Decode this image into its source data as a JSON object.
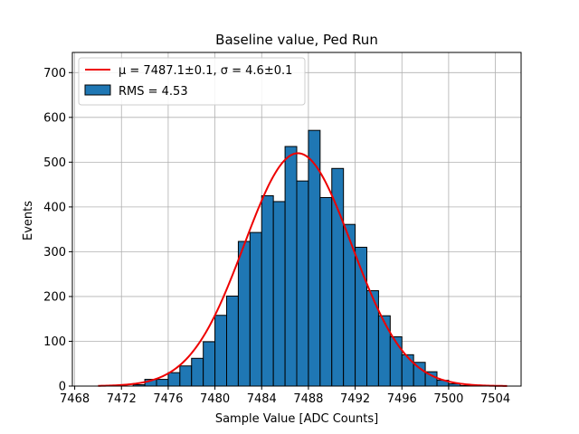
{
  "chart_data": {
    "type": "bar",
    "title": "Baseline value, Ped Run",
    "xlabel": "Sample Value [ADC Counts]",
    "ylabel": "Events",
    "xlim": [
      7467.8,
      7506.2
    ],
    "ylim": [
      0,
      745
    ],
    "grid": true,
    "legend_placement": "top-left",
    "xticks": [
      7468,
      7472,
      7476,
      7480,
      7484,
      7488,
      7492,
      7496,
      7500,
      7504
    ],
    "yticks": [
      0,
      100,
      200,
      300,
      400,
      500,
      600,
      700
    ],
    "bin_width": 1,
    "bins": [
      {
        "x0": 7473,
        "count": 3
      },
      {
        "x0": 7474,
        "count": 15
      },
      {
        "x0": 7475,
        "count": 15
      },
      {
        "x0": 7476,
        "count": 30
      },
      {
        "x0": 7477,
        "count": 45
      },
      {
        "x0": 7478,
        "count": 62
      },
      {
        "x0": 7479,
        "count": 99
      },
      {
        "x0": 7480,
        "count": 158
      },
      {
        "x0": 7481,
        "count": 201
      },
      {
        "x0": 7482,
        "count": 323
      },
      {
        "x0": 7483,
        "count": 343
      },
      {
        "x0": 7484,
        "count": 425
      },
      {
        "x0": 7485,
        "count": 412
      },
      {
        "x0": 7486,
        "count": 535
      },
      {
        "x0": 7487,
        "count": 458
      },
      {
        "x0": 7488,
        "count": 571
      },
      {
        "x0": 7489,
        "count": 421
      },
      {
        "x0": 7490,
        "count": 486
      },
      {
        "x0": 7491,
        "count": 361
      },
      {
        "x0": 7492,
        "count": 310
      },
      {
        "x0": 7493,
        "count": 213
      },
      {
        "x0": 7494,
        "count": 157
      },
      {
        "x0": 7495,
        "count": 110
      },
      {
        "x0": 7496,
        "count": 70
      },
      {
        "x0": 7497,
        "count": 53
      },
      {
        "x0": 7498,
        "count": 32
      },
      {
        "x0": 7499,
        "count": 13
      },
      {
        "x0": 7500,
        "count": 5
      },
      {
        "x0": 7501,
        "count": 1
      }
    ],
    "fit": {
      "type": "gaussian",
      "mu": 7487.1,
      "sigma": 4.6,
      "amplitude": 520,
      "x_range": [
        7470,
        7505
      ]
    },
    "legend": [
      {
        "label": "μ = 7487.1±0.1, σ = 4.6±0.1",
        "kind": "line"
      },
      {
        "label": "RMS = 4.53",
        "kind": "patch"
      }
    ],
    "colors": {
      "bar_fill": "#1f77b4",
      "bar_edge": "#000000",
      "fit_line": "#ee0000"
    }
  }
}
